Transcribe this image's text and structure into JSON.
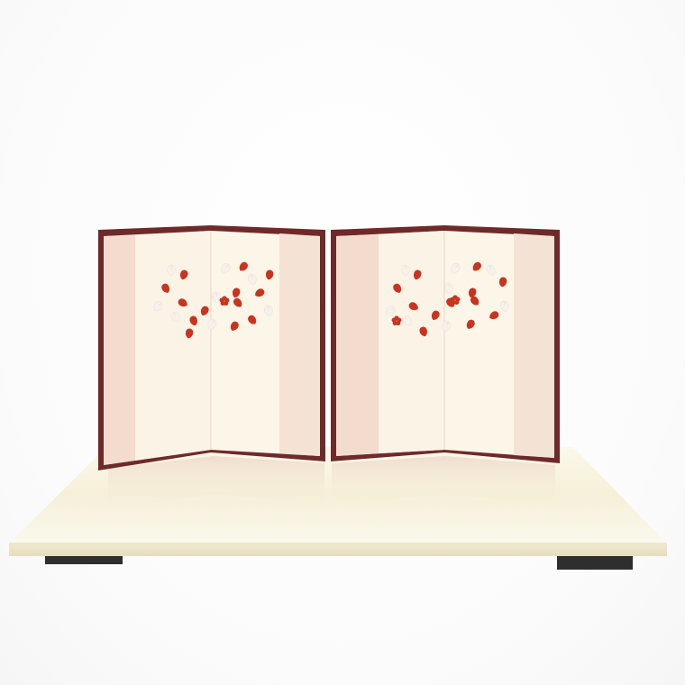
{
  "scene": {
    "colors": {
      "background": "#ffffff",
      "frame": "#6e2a2a",
      "panel_light": "#fbf3e4",
      "panel_pink": "#f4e0d4",
      "stand_top": "#f8f3df",
      "stand_edge": "#efe7cf",
      "stand_feet": "#2e2e2e",
      "petal_red": "#c8341f",
      "petal_white": "#f6f1ea"
    },
    "objects": [
      {
        "name": "folding-screen",
        "count": 2,
        "panels_each": 2,
        "motif": "cherry-blossom-petals"
      },
      {
        "name": "display-stand",
        "material": "cream-lacquer",
        "feet": 2
      }
    ]
  }
}
